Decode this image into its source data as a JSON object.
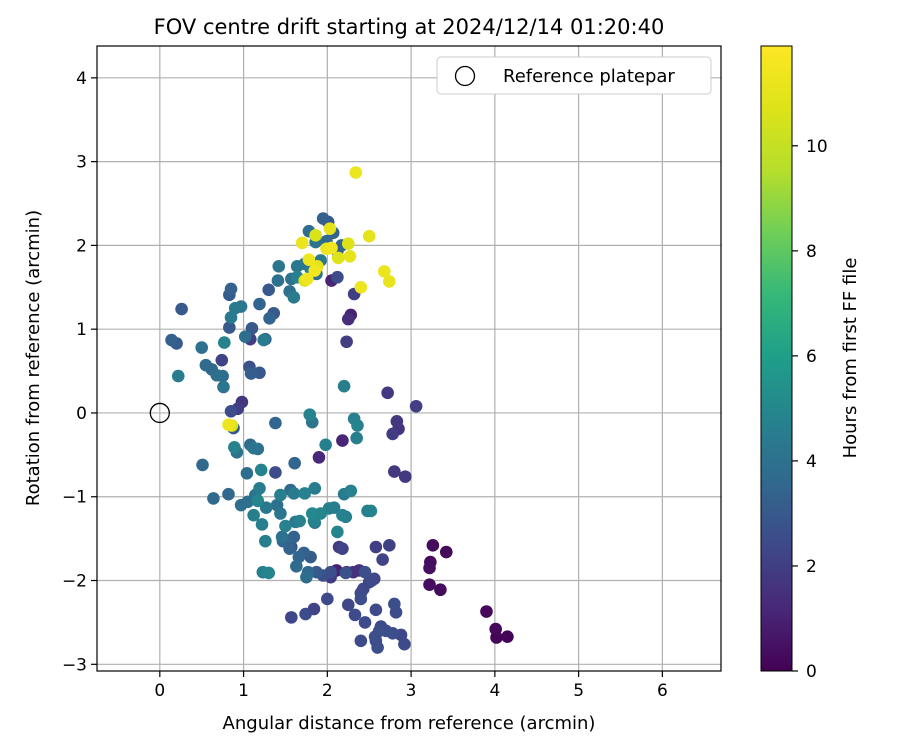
{
  "chart_data": {
    "type": "scatter",
    "title": "FOV centre drift starting at 2024/12/14 01:20:40",
    "xlabel": "Angular distance from reference (arcmin)",
    "ylabel": "Rotation from reference (arcmin)",
    "xlim": [
      -0.75,
      6.7
    ],
    "ylim": [
      -3.08,
      4.38
    ],
    "x_ticks": [
      0,
      1,
      2,
      3,
      4,
      5,
      6
    ],
    "y_ticks": [
      -3,
      -2,
      -1,
      0,
      1,
      2,
      3,
      4
    ],
    "grid": true,
    "legend": {
      "placement": "top-right",
      "entries": [
        "Reference platepar"
      ]
    },
    "reference_point": {
      "x": 0,
      "y": 0
    },
    "colorbar": {
      "label": "Hours from first FF file",
      "range": [
        0,
        11.9
      ],
      "ticks": [
        0,
        2,
        4,
        6,
        8,
        10
      ],
      "colormap": "viridis"
    },
    "points": [
      {
        "x": 4.15,
        "y": -2.67,
        "c": 0.1
      },
      {
        "x": 4.02,
        "y": -2.68,
        "c": 0.1
      },
      {
        "x": 4.01,
        "y": -2.58,
        "c": 0.2
      },
      {
        "x": 3.9,
        "y": -2.37,
        "c": 0.2
      },
      {
        "x": 3.42,
        "y": -1.66,
        "c": 0.2
      },
      {
        "x": 3.35,
        "y": -2.11,
        "c": 0.3
      },
      {
        "x": 3.26,
        "y": -1.58,
        "c": 0.3
      },
      {
        "x": 3.23,
        "y": -1.78,
        "c": 0.3
      },
      {
        "x": 3.22,
        "y": -1.85,
        "c": 0.4
      },
      {
        "x": 3.22,
        "y": -2.05,
        "c": 0.4
      },
      {
        "x": 2.93,
        "y": -0.76,
        "c": 1.8
      },
      {
        "x": 2.8,
        "y": -0.7,
        "c": 1.8
      },
      {
        "x": 2.85,
        "y": -0.19,
        "c": 1.6
      },
      {
        "x": 2.83,
        "y": -0.1,
        "c": 1.7
      },
      {
        "x": 2.78,
        "y": -0.25,
        "c": 1.9
      },
      {
        "x": 3.06,
        "y": 0.08,
        "c": 2.0
      },
      {
        "x": 2.72,
        "y": 0.24,
        "c": 1.8
      },
      {
        "x": 2.74,
        "y": -1.58,
        "c": 2.1
      },
      {
        "x": 2.58,
        "y": -1.6,
        "c": 2.0
      },
      {
        "x": 2.66,
        "y": -1.75,
        "c": 2.2
      },
      {
        "x": 2.56,
        "y": -1.98,
        "c": 2.3
      },
      {
        "x": 2.5,
        "y": -2.02,
        "c": 2.2
      },
      {
        "x": 2.43,
        "y": -2.1,
        "c": 2.3
      },
      {
        "x": 2.4,
        "y": -2.15,
        "c": 2.4
      },
      {
        "x": 2.4,
        "y": -2.22,
        "c": 2.5
      },
      {
        "x": 2.58,
        "y": -2.35,
        "c": 2.4
      },
      {
        "x": 2.8,
        "y": -2.28,
        "c": 2.6
      },
      {
        "x": 2.82,
        "y": -2.38,
        "c": 2.5
      },
      {
        "x": 2.33,
        "y": -2.41,
        "c": 2.4
      },
      {
        "x": 2.4,
        "y": -2.72,
        "c": 2.4
      },
      {
        "x": 2.58,
        "y": -2.72,
        "c": 2.5
      },
      {
        "x": 2.6,
        "y": -2.8,
        "c": 2.6
      },
      {
        "x": 2.64,
        "y": -2.55,
        "c": 2.4
      },
      {
        "x": 2.7,
        "y": -2.6,
        "c": 2.5
      },
      {
        "x": 2.78,
        "y": -2.63,
        "c": 2.6
      },
      {
        "x": 2.88,
        "y": -2.65,
        "c": 2.3
      },
      {
        "x": 2.92,
        "y": -2.76,
        "c": 2.4
      },
      {
        "x": 2.62,
        "y": -2.6,
        "c": 2.6
      },
      {
        "x": 2.57,
        "y": -2.67,
        "c": 2.6
      },
      {
        "x": 2.25,
        "y": -2.29,
        "c": 2.3
      },
      {
        "x": 2.0,
        "y": -2.22,
        "c": 2.4
      },
      {
        "x": 1.84,
        "y": -2.34,
        "c": 2.2
      },
      {
        "x": 1.74,
        "y": -2.4,
        "c": 2.5
      },
      {
        "x": 1.57,
        "y": -2.44,
        "c": 2.3
      },
      {
        "x": 2.11,
        "y": -1.88,
        "c": 1.0
      },
      {
        "x": 2.23,
        "y": -1.9,
        "c": 1.4
      },
      {
        "x": 2.31,
        "y": -1.9,
        "c": 1.5
      },
      {
        "x": 2.38,
        "y": -1.88,
        "c": 1.6
      },
      {
        "x": 2.14,
        "y": -1.6,
        "c": 1.9
      },
      {
        "x": 2.18,
        "y": -1.62,
        "c": 2.2
      },
      {
        "x": 2.04,
        "y": -1.9,
        "c": 2.6
      },
      {
        "x": 1.95,
        "y": -1.94,
        "c": 2.7
      },
      {
        "x": 1.87,
        "y": -1.9,
        "c": 3.0
      },
      {
        "x": 1.8,
        "y": -1.72,
        "c": 3.1
      },
      {
        "x": 1.72,
        "y": -1.67,
        "c": 3.3
      },
      {
        "x": 1.66,
        "y": -1.72,
        "c": 3.5
      },
      {
        "x": 1.63,
        "y": -1.83,
        "c": 3.7
      },
      {
        "x": 1.75,
        "y": -1.96,
        "c": 3.8
      },
      {
        "x": 1.77,
        "y": -1.9,
        "c": 3.6
      },
      {
        "x": 1.57,
        "y": -1.6,
        "c": 2.8
      },
      {
        "x": 1.6,
        "y": -1.48,
        "c": 3.4
      },
      {
        "x": 1.46,
        "y": -1.48,
        "c": 4.0
      },
      {
        "x": 1.47,
        "y": -1.53,
        "c": 3.5
      },
      {
        "x": 1.55,
        "y": -1.62,
        "c": 3.3
      },
      {
        "x": 1.26,
        "y": -1.53,
        "c": 4.6
      },
      {
        "x": 1.3,
        "y": -1.91,
        "c": 4.9
      },
      {
        "x": 1.23,
        "y": -1.9,
        "c": 4.6
      },
      {
        "x": 2.45,
        "y": -2.5,
        "c": 2.4
      },
      {
        "x": 1.9,
        "y": -0.53,
        "c": 1.2
      },
      {
        "x": 2.18,
        "y": -0.33,
        "c": 1.1
      },
      {
        "x": 2.2,
        "y": -0.97,
        "c": 4.5
      },
      {
        "x": 2.28,
        "y": -0.93,
        "c": 4.7
      },
      {
        "x": 2.18,
        "y": -1.22,
        "c": 4.8
      },
      {
        "x": 2.22,
        "y": -1.24,
        "c": 4.6
      },
      {
        "x": 2.12,
        "y": -1.42,
        "c": 4.9
      },
      {
        "x": 2.08,
        "y": -1.13,
        "c": 4.5
      },
      {
        "x": 2.02,
        "y": -1.14,
        "c": 4.6
      },
      {
        "x": 1.92,
        "y": -1.2,
        "c": 4.9
      },
      {
        "x": 1.82,
        "y": -1.2,
        "c": 5.0
      },
      {
        "x": 1.84,
        "y": -1.29,
        "c": 4.8
      },
      {
        "x": 1.85,
        "y": -1.31,
        "c": 4.3
      },
      {
        "x": 1.67,
        "y": -1.29,
        "c": 4.7
      },
      {
        "x": 1.62,
        "y": -1.3,
        "c": 4.3
      },
      {
        "x": 1.5,
        "y": -1.35,
        "c": 4.7
      },
      {
        "x": 1.44,
        "y": -1.2,
        "c": 4.2
      },
      {
        "x": 1.4,
        "y": -1.1,
        "c": 4.0
      },
      {
        "x": 1.27,
        "y": -1.13,
        "c": 4.3
      },
      {
        "x": 1.22,
        "y": -1.33,
        "c": 4.6
      },
      {
        "x": 1.17,
        "y": -1.05,
        "c": 4.9
      },
      {
        "x": 1.12,
        "y": -1.22,
        "c": 4.6
      },
      {
        "x": 1.05,
        "y": -1.06,
        "c": 3.9
      },
      {
        "x": 1.04,
        "y": -0.72,
        "c": 3.8
      },
      {
        "x": 0.97,
        "y": -1.1,
        "c": 3.9
      },
      {
        "x": 1.14,
        "y": -0.98,
        "c": 4.1
      },
      {
        "x": 1.19,
        "y": -0.9,
        "c": 4.5
      },
      {
        "x": 1.21,
        "y": -0.68,
        "c": 4.8
      },
      {
        "x": 1.08,
        "y": -0.38,
        "c": 3.7
      },
      {
        "x": 1.12,
        "y": -0.42,
        "c": 4.2
      },
      {
        "x": 1.17,
        "y": -0.43,
        "c": 4.0
      },
      {
        "x": 0.92,
        "y": -0.47,
        "c": 4.1
      },
      {
        "x": 0.82,
        "y": -0.97,
        "c": 3.6
      },
      {
        "x": 0.64,
        "y": -1.02,
        "c": 3.7
      },
      {
        "x": 0.51,
        "y": -0.62,
        "c": 3.6
      },
      {
        "x": 1.38,
        "y": -0.71,
        "c": 2.5
      },
      {
        "x": 1.61,
        "y": -0.6,
        "c": 3.5
      },
      {
        "x": 1.56,
        "y": -0.92,
        "c": 3.6
      },
      {
        "x": 1.6,
        "y": -0.96,
        "c": 4.4
      },
      {
        "x": 1.44,
        "y": -0.98,
        "c": 4.6
      },
      {
        "x": 1.73,
        "y": -0.96,
        "c": 4.7
      },
      {
        "x": 1.85,
        "y": -0.9,
        "c": 4.5
      },
      {
        "x": 1.98,
        "y": -0.38,
        "c": 4.6
      },
      {
        "x": 1.79,
        "y": -0.02,
        "c": 4.8
      },
      {
        "x": 1.82,
        "y": -0.11,
        "c": 4.1
      },
      {
        "x": 1.38,
        "y": -0.12,
        "c": 3.5
      },
      {
        "x": 2.32,
        "y": -0.07,
        "c": 4.7
      },
      {
        "x": 2.36,
        "y": -0.15,
        "c": 4.8
      },
      {
        "x": 2.35,
        "y": -0.3,
        "c": 4.6
      },
      {
        "x": 2.2,
        "y": 0.32,
        "c": 4.6
      },
      {
        "x": 2.52,
        "y": -1.17,
        "c": 4.8
      },
      {
        "x": 2.48,
        "y": -1.17,
        "c": 4.6
      },
      {
        "x": 2.53,
        "y": -2.0,
        "c": 2.4
      },
      {
        "x": 2.45,
        "y": -1.9,
        "c": 2.6
      },
      {
        "x": 2.22,
        "y": -1.91,
        "c": 2.7
      },
      {
        "x": 2.04,
        "y": -1.96,
        "c": 1.9
      },
      {
        "x": 0.85,
        "y": 0.02,
        "c": 2.5
      },
      {
        "x": 0.93,
        "y": 0.05,
        "c": 2.0
      },
      {
        "x": 0.98,
        "y": 0.13,
        "c": 1.7
      },
      {
        "x": 0.88,
        "y": -0.18,
        "c": 3.0
      },
      {
        "x": 0.86,
        "y": -0.15,
        "c": 10.8
      },
      {
        "x": 0.82,
        "y": -0.14,
        "c": 11.3
      },
      {
        "x": 0.89,
        "y": -0.41,
        "c": 4.8
      },
      {
        "x": 0.22,
        "y": 0.44,
        "c": 4.5
      },
      {
        "x": 0.76,
        "y": 0.31,
        "c": 4.2
      },
      {
        "x": 0.75,
        "y": 0.44,
        "c": 3.8
      },
      {
        "x": 0.68,
        "y": 0.45,
        "c": 3.9
      },
      {
        "x": 0.74,
        "y": 0.63,
        "c": 2.2
      },
      {
        "x": 0.62,
        "y": 0.52,
        "c": 3.6
      },
      {
        "x": 0.55,
        "y": 0.57,
        "c": 3.7
      },
      {
        "x": 0.5,
        "y": 0.78,
        "c": 4.0
      },
      {
        "x": 0.14,
        "y": 0.87,
        "c": 3.3
      },
      {
        "x": 0.2,
        "y": 0.83,
        "c": 3.1
      },
      {
        "x": 0.26,
        "y": 1.24,
        "c": 3.0
      },
      {
        "x": 0.77,
        "y": 0.84,
        "c": 4.8
      },
      {
        "x": 0.83,
        "y": 1.02,
        "c": 3.0
      },
      {
        "x": 0.85,
        "y": 1.14,
        "c": 4.4
      },
      {
        "x": 0.9,
        "y": 1.25,
        "c": 4.4
      },
      {
        "x": 0.97,
        "y": 1.27,
        "c": 4.2
      },
      {
        "x": 1.02,
        "y": 0.91,
        "c": 3.9
      },
      {
        "x": 1.08,
        "y": 0.88,
        "c": 2.0
      },
      {
        "x": 1.1,
        "y": 1.01,
        "c": 3.0
      },
      {
        "x": 1.07,
        "y": 0.55,
        "c": 2.7
      },
      {
        "x": 1.09,
        "y": 0.47,
        "c": 3.2
      },
      {
        "x": 1.19,
        "y": 0.48,
        "c": 3.0
      },
      {
        "x": 0.83,
        "y": 1.41,
        "c": 3.1
      },
      {
        "x": 0.85,
        "y": 1.48,
        "c": 3.3
      },
      {
        "x": 1.19,
        "y": 1.3,
        "c": 3.4
      },
      {
        "x": 1.24,
        "y": 0.87,
        "c": 4.5
      },
      {
        "x": 1.26,
        "y": 0.88,
        "c": 3.6
      },
      {
        "x": 1.31,
        "y": 1.13,
        "c": 3.4
      },
      {
        "x": 1.36,
        "y": 1.19,
        "c": 3.0
      },
      {
        "x": 1.3,
        "y": 1.47,
        "c": 3.0
      },
      {
        "x": 1.41,
        "y": 1.58,
        "c": 4.0
      },
      {
        "x": 1.42,
        "y": 1.75,
        "c": 4.2
      },
      {
        "x": 1.55,
        "y": 1.45,
        "c": 3.9
      },
      {
        "x": 1.6,
        "y": 1.38,
        "c": 4.5
      },
      {
        "x": 1.57,
        "y": 1.6,
        "c": 4.0
      },
      {
        "x": 1.64,
        "y": 1.75,
        "c": 4.3
      },
      {
        "x": 1.64,
        "y": 1.62,
        "c": 4.7
      },
      {
        "x": 1.73,
        "y": 1.78,
        "c": 4.1
      },
      {
        "x": 1.8,
        "y": 1.72,
        "c": 4.5
      },
      {
        "x": 1.87,
        "y": 1.66,
        "c": 4.0
      },
      {
        "x": 1.92,
        "y": 1.82,
        "c": 4.3
      },
      {
        "x": 1.78,
        "y": 2.17,
        "c": 3.8
      },
      {
        "x": 1.86,
        "y": 2.04,
        "c": 4.1
      },
      {
        "x": 1.95,
        "y": 2.32,
        "c": 3.3
      },
      {
        "x": 2.01,
        "y": 2.28,
        "c": 3.0
      },
      {
        "x": 2.07,
        "y": 2.15,
        "c": 3.4
      },
      {
        "x": 1.99,
        "y": 2.05,
        "c": 3.6
      },
      {
        "x": 2.12,
        "y": 1.93,
        "c": 3.0
      },
      {
        "x": 2.17,
        "y": 2.0,
        "c": 3.5
      },
      {
        "x": 2.12,
        "y": 1.62,
        "c": 2.5
      },
      {
        "x": 2.05,
        "y": 1.58,
        "c": 1.1
      },
      {
        "x": 2.32,
        "y": 1.42,
        "c": 2.0
      },
      {
        "x": 2.25,
        "y": 1.12,
        "c": 1.4
      },
      {
        "x": 2.28,
        "y": 1.17,
        "c": 1.0
      },
      {
        "x": 2.23,
        "y": 0.85,
        "c": 2.0
      },
      {
        "x": 2.34,
        "y": 2.87,
        "c": 11.3
      },
      {
        "x": 2.5,
        "y": 2.11,
        "c": 11.0
      },
      {
        "x": 2.68,
        "y": 1.69,
        "c": 11.2
      },
      {
        "x": 2.74,
        "y": 1.57,
        "c": 11.1
      },
      {
        "x": 2.4,
        "y": 1.5,
        "c": 11.3
      },
      {
        "x": 2.27,
        "y": 1.87,
        "c": 11.0
      },
      {
        "x": 2.25,
        "y": 2.02,
        "c": 10.7
      },
      {
        "x": 2.13,
        "y": 1.85,
        "c": 10.8
      },
      {
        "x": 2.05,
        "y": 1.97,
        "c": 11.5
      },
      {
        "x": 1.99,
        "y": 1.96,
        "c": 11.2
      },
      {
        "x": 2.03,
        "y": 2.2,
        "c": 11.0
      },
      {
        "x": 1.86,
        "y": 2.12,
        "c": 10.6
      },
      {
        "x": 1.7,
        "y": 2.03,
        "c": 11.2
      },
      {
        "x": 1.78,
        "y": 1.83,
        "c": 11.3
      },
      {
        "x": 1.76,
        "y": 1.6,
        "c": 11.4
      },
      {
        "x": 1.85,
        "y": 1.7,
        "c": 11.5
      },
      {
        "x": 1.88,
        "y": 1.75,
        "c": 11.0
      },
      {
        "x": 1.73,
        "y": 1.58,
        "c": 10.8
      }
    ]
  }
}
